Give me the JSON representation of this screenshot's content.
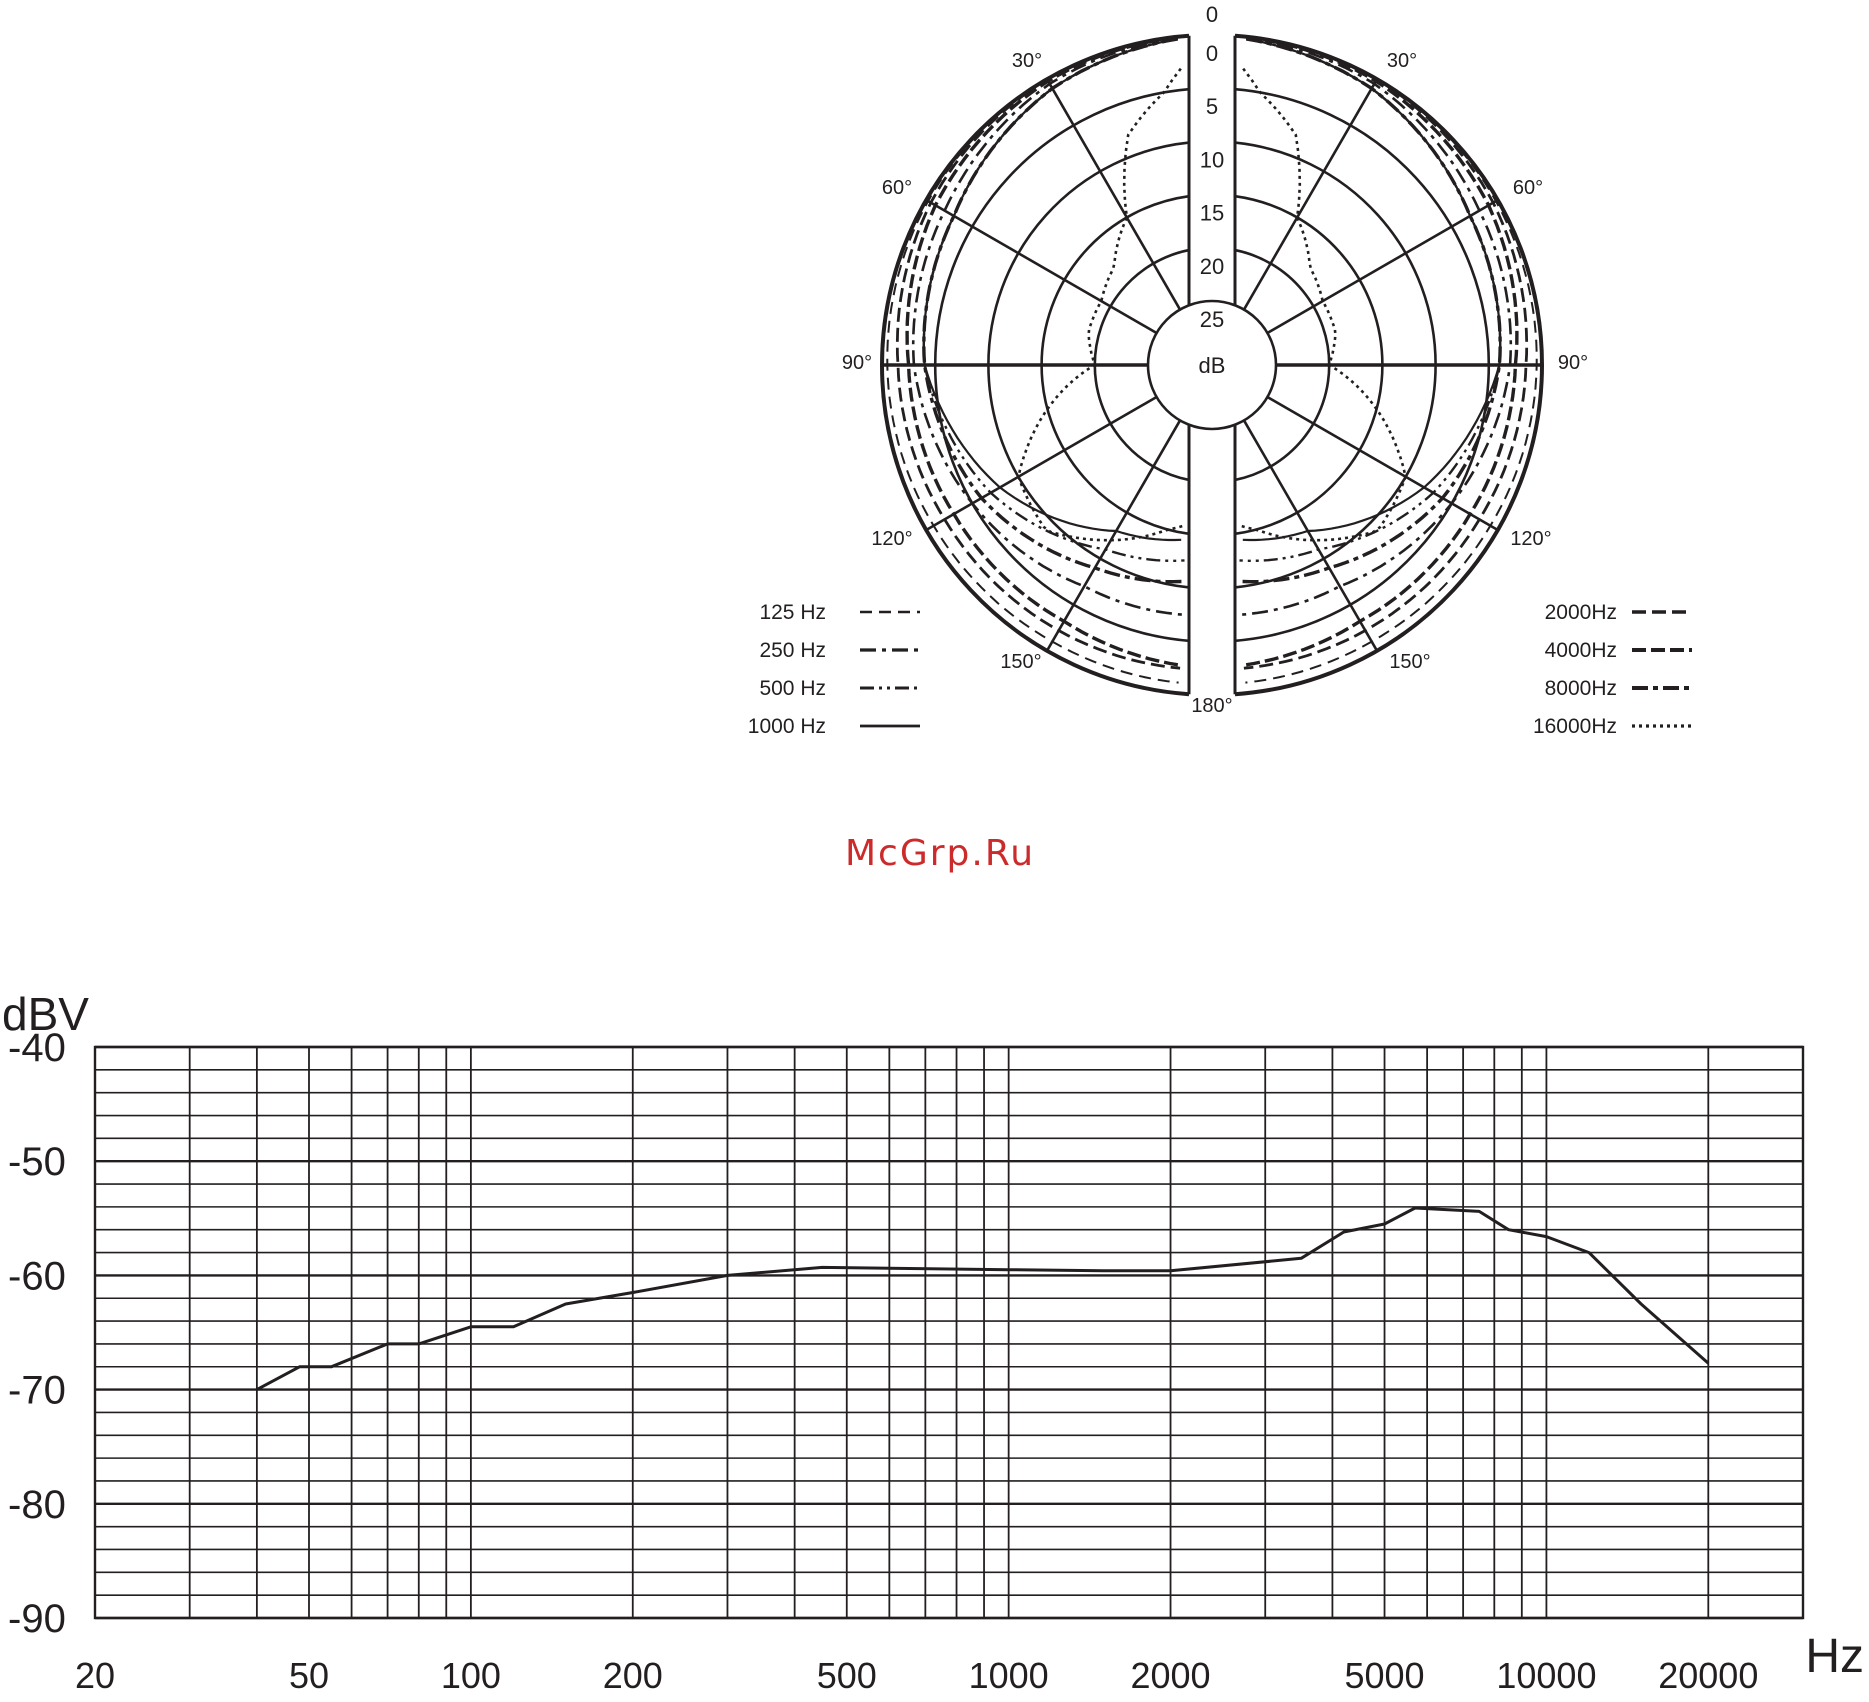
{
  "watermark": "McGrp.Ru",
  "colors": {
    "ink": "#231f20",
    "watermark": "#cc2b2b"
  },
  "chart_data": [
    {
      "type": "polar",
      "title": "",
      "center_label": "dB",
      "radial_ticks": [
        "0",
        "5",
        "10",
        "15",
        "20",
        "25"
      ],
      "top_label": "0",
      "angle_labels": [
        "30°",
        "60°",
        "90°",
        "120°",
        "150°",
        "180°"
      ],
      "legend": [
        {
          "name": "125 Hz",
          "style": "dashed-thin"
        },
        {
          "name": "250 Hz",
          "style": "dash-dot"
        },
        {
          "name": "500 Hz",
          "style": "dash-dot-dot"
        },
        {
          "name": "1000 Hz",
          "style": "solid"
        },
        {
          "name": "2000Hz",
          "style": "dashed"
        },
        {
          "name": "4000Hz",
          "style": "dashed-bold"
        },
        {
          "name": "8000Hz",
          "style": "dash-dot-bold"
        },
        {
          "name": "16000Hz",
          "style": "dotted"
        }
      ],
      "series": [
        {
          "name": "125 Hz",
          "angles": [
            0,
            30,
            60,
            90,
            120,
            150,
            180
          ],
          "db": [
            0,
            0,
            -0.2,
            -0.5,
            -0.8,
            -1,
            -1
          ]
        },
        {
          "name": "2000Hz",
          "angles": [
            0,
            30,
            60,
            90,
            120,
            150,
            180
          ],
          "db": [
            0,
            0,
            -0.5,
            -1.5,
            -2,
            -2.2,
            -2.4
          ]
        },
        {
          "name": "4000Hz",
          "angles": [
            0,
            30,
            60,
            90,
            120,
            150,
            180
          ],
          "db": [
            0,
            -0.2,
            -1,
            -2.5,
            -3,
            -3.2,
            -2.5
          ]
        },
        {
          "name": "250 Hz",
          "angles": [
            0,
            30,
            60,
            90,
            120,
            150,
            180
          ],
          "db": [
            0,
            -0.5,
            -2,
            -3,
            -5,
            -7,
            -7.5
          ]
        },
        {
          "name": "8000Hz",
          "angles": [
            0,
            30,
            60,
            90,
            120,
            150,
            180
          ],
          "db": [
            0,
            -1,
            -3,
            -4,
            -6,
            -9,
            -11
          ]
        },
        {
          "name": "500 Hz",
          "angles": [
            0,
            30,
            60,
            90,
            120,
            150,
            180
          ],
          "db": [
            0,
            -1,
            -3,
            -4,
            -7,
            -11,
            -13
          ]
        },
        {
          "name": "1000 Hz",
          "angles": [
            0,
            30,
            60,
            90,
            120,
            150,
            180
          ],
          "db": [
            0,
            -1,
            -3,
            -4,
            -8,
            -13,
            -15
          ]
        },
        {
          "name": "16000Hz",
          "angles": [
            0,
            10,
            20,
            30,
            45,
            60,
            75,
            90,
            105,
            120,
            135,
            150,
            165,
            180
          ],
          "db": [
            0,
            -5,
            -8,
            -15,
            -18,
            -19,
            -19,
            -20,
            -15,
            -10,
            -9,
            -12,
            -15,
            -17
          ]
        }
      ]
    },
    {
      "type": "line",
      "title": "",
      "ylabel": "dBV",
      "xlabel": "Hz",
      "xscale": "log",
      "xlim": [
        20,
        30000
      ],
      "ylim": [
        -90,
        -40
      ],
      "yticks": [
        -40,
        -50,
        -60,
        -70,
        -80,
        -90
      ],
      "xticks": [
        20,
        50,
        100,
        200,
        500,
        1000,
        2000,
        5000,
        10000,
        20000
      ],
      "series": [
        {
          "x": [
            40,
            48,
            55,
            70,
            80,
            100,
            120,
            150,
            200,
            300,
            450,
            1000,
            1500,
            2000,
            3500,
            4200,
            5000,
            5700,
            7500,
            8500,
            10000,
            12000,
            15000,
            20000
          ],
          "y": [
            -70,
            -68,
            -68,
            -66,
            -66,
            -64.5,
            -64.5,
            -62.5,
            -61.5,
            -60,
            -59.3,
            -59.5,
            -59.6,
            -59.6,
            -58.5,
            -56.2,
            -55.5,
            -54.1,
            -54.4,
            -56,
            -56.6,
            -58,
            -62.5,
            -67.7
          ]
        }
      ]
    }
  ]
}
